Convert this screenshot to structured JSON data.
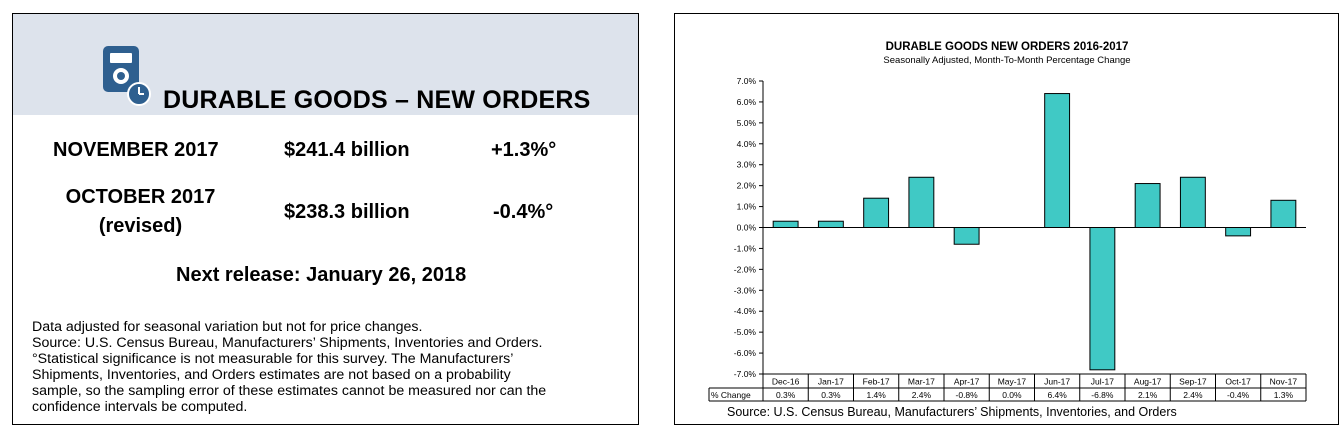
{
  "summary": {
    "title": "DURABLE GOODS – NEW ORDERS",
    "rows": [
      {
        "period": "NOVEMBER 2017",
        "period_note": "",
        "value": "$241.4 billion",
        "change": "+1.3%°"
      },
      {
        "period": "OCTOBER 2017",
        "period_note": "(revised)",
        "value": "$238.3 billion",
        "change": "-0.4%°"
      }
    ],
    "next_release": "Next release: January 26, 2018",
    "notes": [
      "Data adjusted for seasonal variation but not for price changes.",
      "Source: U.S. Census Bureau, Manufacturers’ Shipments, Inventories and Orders.",
      "°Statistical significance is not measurable for this survey.  The Manufacturers’",
      "Shipments, Inventories, and Orders estimates are not based on a probability",
      "sample, so the sampling error of these estimates cannot be measured nor can the",
      "confidence intervals be computed."
    ],
    "header_color": "#dde3ec",
    "icon": "document-clock-icon"
  },
  "chart_data": {
    "type": "bar",
    "title": "DURABLE GOODS NEW ORDERS 2016-2017",
    "subtitle": "Seasonally Adjusted,  Month-To-Month  Percentage Change",
    "categories": [
      "Dec-16",
      "Jan-17",
      "Feb-17",
      "Mar-17",
      "Apr-17",
      "May-17",
      "Jun-17",
      "Jul-17",
      "Aug-17",
      "Sep-17",
      "Oct-17",
      "Nov-17"
    ],
    "series": [
      {
        "name": "% Change",
        "values": [
          0.3,
          0.3,
          1.4,
          2.4,
          -0.8,
          0.0,
          6.4,
          -6.8,
          2.1,
          2.4,
          -0.4,
          1.3
        ]
      }
    ],
    "table_row_label": "% Change",
    "table_values": [
      "0.3%",
      "0.3%",
      "1.4%",
      "2.4%",
      "-0.8%",
      "0.0%",
      "6.4%",
      "-6.8%",
      "2.1%",
      "2.4%",
      "-0.4%",
      "1.3%"
    ],
    "y_ticks": [
      "7.0%",
      "6.0%",
      "5.0%",
      "4.0%",
      "3.0%",
      "2.0%",
      "1.0%",
      "0.0%",
      "-1.0%",
      "-2.0%",
      "-3.0%",
      "-4.0%",
      "-5.0%",
      "-6.0%",
      "-7.0%"
    ],
    "ylim": [
      -7,
      7
    ],
    "grid": false,
    "bar_color": "#40c9c5",
    "source": "Source: U.S. Census Bureau, Manufacturers’ Shipments, Inventories, and Orders"
  }
}
